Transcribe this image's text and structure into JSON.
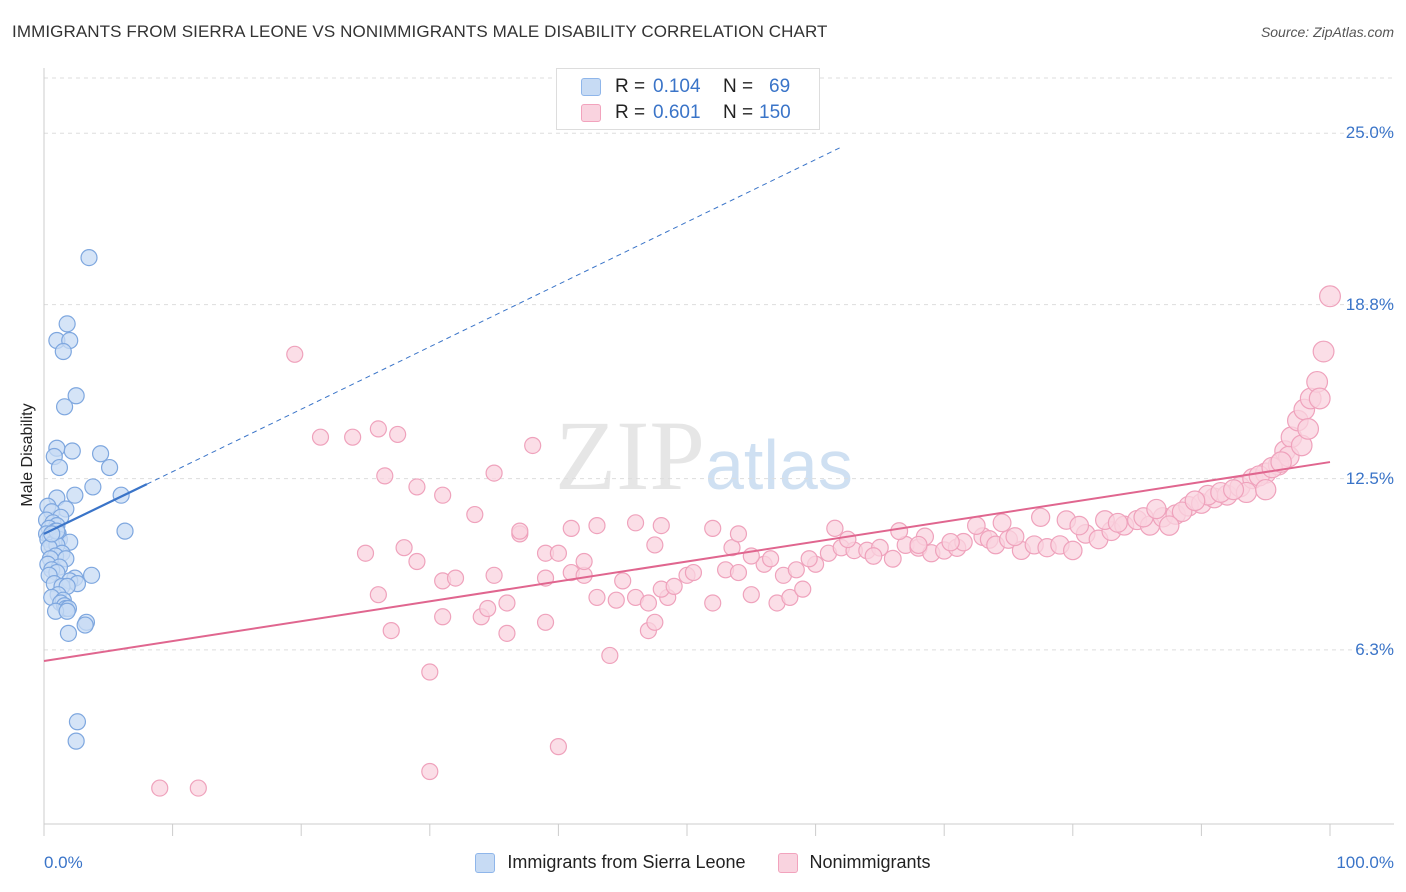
{
  "title": "IMMIGRANTS FROM SIERRA LEONE VS NONIMMIGRANTS MALE DISABILITY CORRELATION CHART",
  "source": "Source: ZipAtlas.com",
  "watermark": {
    "zip": "ZIP",
    "atlas": "atlas"
  },
  "legend": {
    "rows": [
      {
        "r_label": "R =",
        "r_value": "0.104",
        "n_label": "N =",
        "n_value": "69",
        "color": "#8fb6ea"
      },
      {
        "r_label": "R =",
        "r_value": "0.601",
        "n_label": "N =",
        "n_value": "150",
        "color": "#f2a3bd"
      }
    ]
  },
  "bottom_legend": {
    "items": [
      {
        "label": "Immigrants from Sierra Leone",
        "color": "#8fb6ea"
      },
      {
        "label": "Nonimmigrants",
        "color": "#f2a3bd"
      }
    ]
  },
  "colors": {
    "blue": "#3a74c8",
    "blue_fill": "#c7dbf4",
    "blue_stroke": "#7ea7df",
    "pink": "#e0668f",
    "pink_fill": "#f9d3df",
    "pink_stroke": "#efa2bc",
    "grid": "#dddddd"
  },
  "chart_data": {
    "type": "scatter",
    "title": "IMMIGRANTS FROM SIERRA LEONE VS NONIMMIGRANTS MALE DISABILITY CORRELATION CHART",
    "xlabel": "",
    "ylabel": "Male Disability",
    "xlim": [
      0,
      100
    ],
    "ylim": [
      0,
      27
    ],
    "y_ticks": [
      {
        "value": 25.0,
        "label": "25.0%"
      },
      {
        "value": 18.8,
        "label": "18.8%"
      },
      {
        "value": 12.5,
        "label": "12.5%"
      },
      {
        "value": 6.3,
        "label": "6.3%"
      }
    ],
    "x_tick_labels": [
      {
        "value": 0,
        "label": "0.0%"
      },
      {
        "value": 100,
        "label": "100.0%"
      }
    ],
    "x_tick_marks": [
      0,
      10,
      20,
      30,
      40,
      50,
      60,
      70,
      80,
      90,
      100
    ],
    "grid": true,
    "legend_position": "top-center",
    "series": [
      {
        "name": "Immigrants from Sierra Leone",
        "R": 0.104,
        "N": 69,
        "trend": {
          "x0": 0,
          "y0": 10.5,
          "x1": 8,
          "y1": 12.3,
          "dashed_to": {
            "x": 62,
            "y": 24.5
          }
        },
        "points": [
          [
            3.5,
            20.5
          ],
          [
            1.8,
            18.1
          ],
          [
            1.0,
            17.5
          ],
          [
            2.0,
            17.5
          ],
          [
            1.5,
            17.1
          ],
          [
            2.5,
            15.5
          ],
          [
            1.6,
            15.1
          ],
          [
            1.0,
            13.6
          ],
          [
            2.2,
            13.5
          ],
          [
            0.8,
            13.3
          ],
          [
            4.4,
            13.4
          ],
          [
            1.2,
            12.9
          ],
          [
            5.1,
            12.9
          ],
          [
            3.8,
            12.2
          ],
          [
            2.4,
            11.9
          ],
          [
            6.0,
            11.9
          ],
          [
            1.0,
            11.8
          ],
          [
            0.3,
            11.5
          ],
          [
            1.7,
            11.4
          ],
          [
            0.6,
            11.3
          ],
          [
            1.3,
            11.1
          ],
          [
            0.2,
            11.0
          ],
          [
            0.7,
            10.9
          ],
          [
            1.0,
            10.8
          ],
          [
            0.4,
            10.7
          ],
          [
            0.9,
            10.6
          ],
          [
            6.3,
            10.6
          ],
          [
            0.2,
            10.5
          ],
          [
            1.1,
            10.5
          ],
          [
            0.5,
            10.4
          ],
          [
            0.3,
            10.3
          ],
          [
            0.8,
            10.2
          ],
          [
            1.2,
            10.3
          ],
          [
            2.0,
            10.2
          ],
          [
            0.6,
            10.1
          ],
          [
            1.0,
            10.1
          ],
          [
            0.4,
            10.0
          ],
          [
            1.4,
            9.8
          ],
          [
            0.9,
            9.7
          ],
          [
            0.5,
            9.6
          ],
          [
            1.7,
            9.6
          ],
          [
            0.3,
            9.4
          ],
          [
            1.2,
            9.3
          ],
          [
            0.6,
            9.2
          ],
          [
            1.0,
            9.1
          ],
          [
            0.4,
            9.0
          ],
          [
            3.7,
            9.0
          ],
          [
            2.4,
            8.9
          ],
          [
            2.0,
            8.8
          ],
          [
            0.8,
            8.7
          ],
          [
            1.4,
            8.6
          ],
          [
            2.6,
            8.7
          ],
          [
            1.8,
            8.6
          ],
          [
            1.1,
            8.3
          ],
          [
            0.6,
            8.2
          ],
          [
            1.5,
            8.1
          ],
          [
            1.3,
            8.0
          ],
          [
            1.6,
            7.9
          ],
          [
            1.7,
            7.8
          ],
          [
            1.9,
            7.8
          ],
          [
            0.9,
            7.7
          ],
          [
            1.8,
            7.7
          ],
          [
            3.3,
            7.3
          ],
          [
            3.2,
            7.2
          ],
          [
            1.9,
            6.9
          ],
          [
            2.6,
            3.7
          ],
          [
            2.5,
            3.0
          ],
          [
            1.0,
            10.6
          ],
          [
            0.6,
            10.5
          ]
        ]
      },
      {
        "name": "Nonimmigrants",
        "R": 0.601,
        "N": 150,
        "trend": {
          "x0": 0,
          "y0": 5.9,
          "x1": 100,
          "y1": 13.1
        },
        "points": [
          [
            9,
            1.3
          ],
          [
            12,
            1.3
          ],
          [
            30,
            1.9
          ],
          [
            40,
            2.8
          ],
          [
            30,
            5.5
          ],
          [
            44,
            6.1
          ],
          [
            27,
            7.0
          ],
          [
            36,
            6.9
          ],
          [
            39,
            7.3
          ],
          [
            47,
            7.0
          ],
          [
            47.5,
            7.3
          ],
          [
            31,
            7.5
          ],
          [
            34,
            7.5
          ],
          [
            34.5,
            7.8
          ],
          [
            36,
            8.0
          ],
          [
            43,
            8.2
          ],
          [
            44.5,
            8.1
          ],
          [
            46,
            8.2
          ],
          [
            47,
            8.0
          ],
          [
            48.5,
            8.2
          ],
          [
            52,
            8.0
          ],
          [
            55,
            8.3
          ],
          [
            57,
            8.0
          ],
          [
            58,
            8.2
          ],
          [
            59,
            8.5
          ],
          [
            26,
            8.3
          ],
          [
            31,
            8.8
          ],
          [
            35,
            9.0
          ],
          [
            39,
            8.9
          ],
          [
            41,
            9.1
          ],
          [
            42,
            9.0
          ],
          [
            45,
            8.8
          ],
          [
            48,
            8.5
          ],
          [
            49,
            8.6
          ],
          [
            50,
            9.0
          ],
          [
            50.5,
            9.1
          ],
          [
            53,
            9.2
          ],
          [
            54,
            9.1
          ],
          [
            56,
            9.4
          ],
          [
            57.5,
            9.0
          ],
          [
            58.5,
            9.2
          ],
          [
            60,
            9.4
          ],
          [
            25,
            9.8
          ],
          [
            29,
            9.5
          ],
          [
            39,
            9.8
          ],
          [
            40,
            9.8
          ],
          [
            42,
            9.5
          ],
          [
            47.5,
            10.1
          ],
          [
            53.5,
            10.0
          ],
          [
            56.5,
            9.6
          ],
          [
            59.5,
            9.6
          ],
          [
            61,
            9.8
          ],
          [
            62,
            10.0
          ],
          [
            63,
            9.9
          ],
          [
            64,
            9.9
          ],
          [
            65,
            10.0
          ],
          [
            66,
            9.6
          ],
          [
            67,
            10.1
          ],
          [
            68,
            10.0
          ],
          [
            69,
            9.8
          ],
          [
            70,
            9.9
          ],
          [
            71,
            10.0
          ],
          [
            73,
            10.4
          ],
          [
            73.5,
            10.3
          ],
          [
            74,
            10.1
          ],
          [
            75,
            10.3
          ],
          [
            76,
            9.9
          ],
          [
            77,
            10.1
          ],
          [
            78,
            10.0
          ],
          [
            79,
            10.1
          ],
          [
            80,
            9.9
          ],
          [
            81,
            10.5
          ],
          [
            82,
            10.3
          ],
          [
            83,
            10.6
          ],
          [
            84,
            10.8
          ],
          [
            85,
            11.0
          ],
          [
            86,
            10.8
          ],
          [
            87,
            11.1
          ],
          [
            88,
            11.2
          ],
          [
            89,
            11.5
          ],
          [
            90,
            11.6
          ],
          [
            91,
            11.8
          ],
          [
            92,
            11.9
          ],
          [
            93,
            12.2
          ],
          [
            94,
            12.5
          ],
          [
            95,
            12.7
          ],
          [
            96,
            13.0
          ],
          [
            96.5,
            13.5
          ],
          [
            97,
            14.0
          ],
          [
            97.5,
            14.6
          ],
          [
            98,
            15.0
          ],
          [
            98.5,
            15.4
          ],
          [
            99,
            16.0
          ],
          [
            99.5,
            17.1
          ],
          [
            100,
            19.1
          ],
          [
            28,
            10.0
          ],
          [
            37,
            10.5
          ],
          [
            41,
            10.7
          ],
          [
            43,
            10.8
          ],
          [
            46,
            10.9
          ],
          [
            52,
            10.7
          ],
          [
            54,
            10.5
          ],
          [
            61.5,
            10.7
          ],
          [
            66.5,
            10.6
          ],
          [
            68.5,
            10.4
          ],
          [
            71.5,
            10.2
          ],
          [
            72.5,
            10.8
          ],
          [
            74.5,
            10.9
          ],
          [
            77.5,
            11.1
          ],
          [
            79.5,
            11.0
          ],
          [
            82.5,
            11.0
          ],
          [
            85.5,
            11.1
          ],
          [
            86.5,
            11.4
          ],
          [
            88.5,
            11.3
          ],
          [
            90.5,
            11.9
          ],
          [
            91.5,
            12.0
          ],
          [
            93.5,
            12.0
          ],
          [
            94.5,
            12.6
          ],
          [
            95.5,
            12.9
          ],
          [
            96.8,
            13.3
          ],
          [
            97.8,
            13.7
          ],
          [
            98.3,
            14.3
          ],
          [
            99.2,
            15.4
          ],
          [
            26.5,
            12.6
          ],
          [
            29,
            12.2
          ],
          [
            31,
            11.9
          ],
          [
            32,
            8.9
          ],
          [
            33.5,
            11.2
          ],
          [
            35,
            12.7
          ],
          [
            38,
            13.7
          ],
          [
            24,
            14.0
          ],
          [
            26,
            14.3
          ],
          [
            27.5,
            14.1
          ],
          [
            19.5,
            17.0
          ],
          [
            21.5,
            14.0
          ],
          [
            37,
            10.6
          ],
          [
            48,
            10.8
          ],
          [
            55,
            9.7
          ],
          [
            62.5,
            10.3
          ],
          [
            64.5,
            9.7
          ],
          [
            68,
            10.1
          ],
          [
            70.5,
            10.2
          ],
          [
            75.5,
            10.4
          ],
          [
            80.5,
            10.8
          ],
          [
            83.5,
            10.9
          ],
          [
            87.5,
            10.8
          ],
          [
            89.5,
            11.7
          ],
          [
            92.5,
            12.1
          ],
          [
            95,
            12.1
          ],
          [
            96.2,
            13.1
          ]
        ]
      }
    ]
  }
}
